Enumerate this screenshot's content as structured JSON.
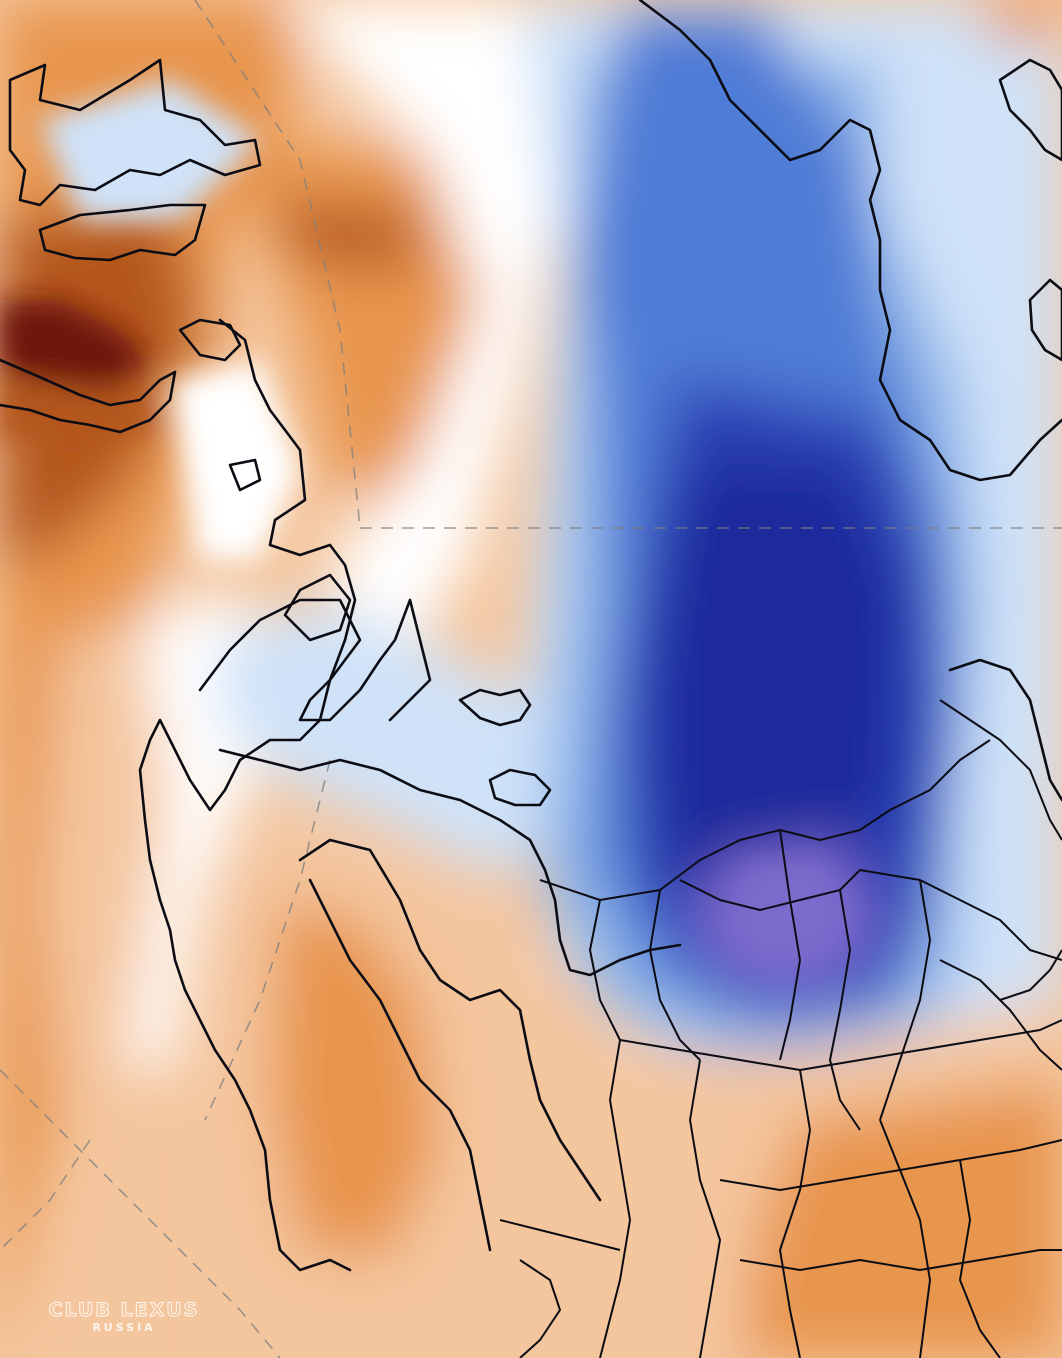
{
  "map": {
    "palette": {
      "deep_red": "#6e1408",
      "dark_orange": "#b4561c",
      "orange": "#e8954e",
      "light_orange": "#f4c69e",
      "pale": "#fbe7d6",
      "white": "#ffffff",
      "light_blue": "#cfe2f8",
      "blue": "#8fb6ea",
      "mid_blue": "#4f7cd6",
      "dark_blue": "#2a3fb4",
      "navy": "#1d2a9c",
      "purple": "#7b6bcc",
      "coastline": "#0c0c14",
      "gridline": "#7f7f7f"
    }
  },
  "watermark": {
    "title": "CLUB LEXUS",
    "subtitle": "RUSSIA"
  }
}
